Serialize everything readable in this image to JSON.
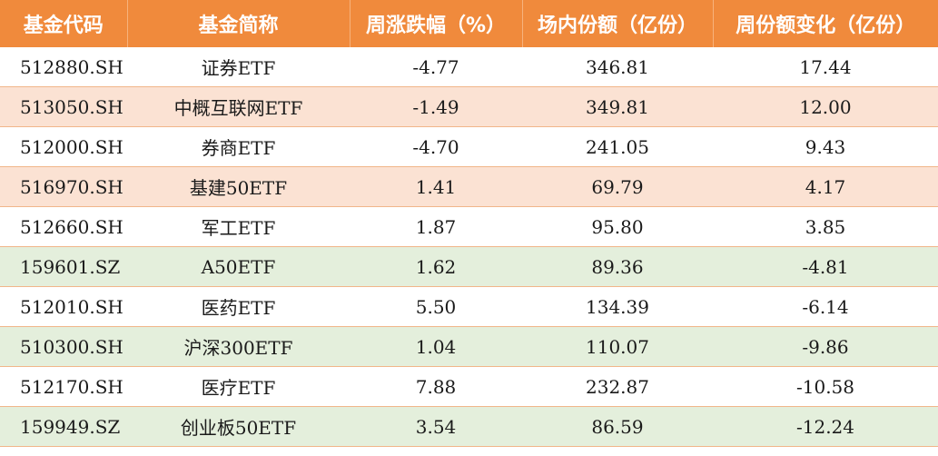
{
  "colors": {
    "header_bg": "#f08a3c",
    "header_text": "#ffffff",
    "row_peach": "#fbe2d3",
    "row_green": "#e4efdc",
    "row_plain": "#ffffff"
  },
  "table": {
    "headers": [
      "基金代码",
      "基金简称",
      "周涨跌幅（%）",
      "场内份额（亿份）",
      "周份额变化（亿份）"
    ],
    "rows": [
      {
        "style": "plain",
        "cells": [
          "512880.SH",
          "证券ETF",
          "-4.77",
          "346.81",
          "17.44"
        ]
      },
      {
        "style": "peach",
        "cells": [
          "513050.SH",
          "中概互联网ETF",
          "-1.49",
          "349.81",
          "12.00"
        ]
      },
      {
        "style": "plain",
        "cells": [
          "512000.SH",
          "券商ETF",
          "-4.70",
          "241.05",
          "9.43"
        ]
      },
      {
        "style": "peach",
        "cells": [
          "516970.SH",
          "基建50ETF",
          "1.41",
          "69.79",
          "4.17"
        ]
      },
      {
        "style": "plain",
        "cells": [
          "512660.SH",
          "军工ETF",
          "1.87",
          "95.80",
          "3.85"
        ]
      },
      {
        "style": "green",
        "cells": [
          "159601.SZ",
          "A50ETF",
          "1.62",
          "89.36",
          "-4.81"
        ]
      },
      {
        "style": "plain",
        "cells": [
          "512010.SH",
          "医药ETF",
          "5.50",
          "134.39",
          "-6.14"
        ]
      },
      {
        "style": "green",
        "cells": [
          "510300.SH",
          "沪深300ETF",
          "1.04",
          "110.07",
          "-9.86"
        ]
      },
      {
        "style": "plain",
        "cells": [
          "512170.SH",
          "医疗ETF",
          "7.88",
          "232.87",
          "-10.58"
        ]
      },
      {
        "style": "green",
        "cells": [
          "159949.SZ",
          "创业板50ETF",
          "3.54",
          "86.59",
          "-12.24"
        ]
      }
    ]
  }
}
